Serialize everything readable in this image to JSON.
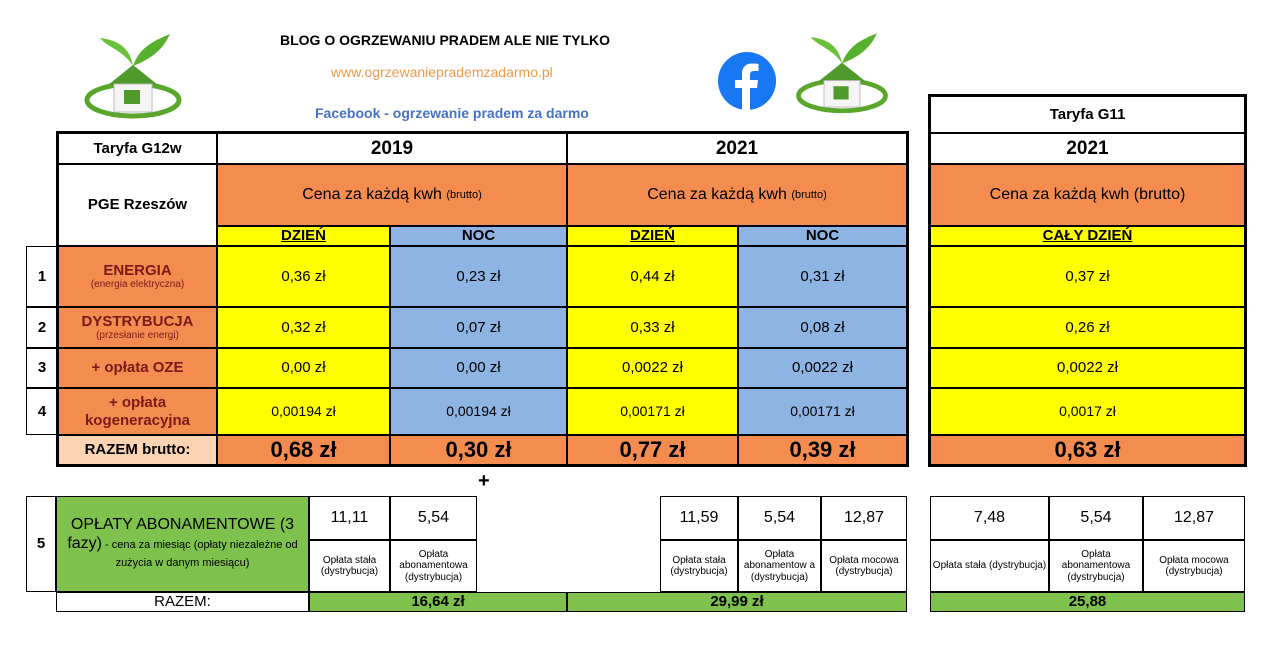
{
  "header": {
    "blog_title": "BLOG O OGRZEWANIU PRADEM ALE NIE TYLKO",
    "website": "www.ogrzewanieprademzadarmo.pl",
    "facebook_link": "Facebook - ogrzewanie pradem za darmo"
  },
  "g12w": {
    "tariff": "Taryfa G12w",
    "operator": "PGE Rzeszów",
    "years": [
      "2019",
      "2021"
    ],
    "price_header_main": "Cena za każdą kwh",
    "price_header_suffix": "(brutto)",
    "day": "DZIEŃ",
    "night": "NOC"
  },
  "g11": {
    "tariff": "Taryfa G11",
    "year": "2021",
    "price_header": "Cena za każdą kwh (brutto)",
    "all_day": "CAŁY DZIEŃ"
  },
  "rows": [
    {
      "num": "1",
      "label": "ENERGIA",
      "sub": "(energia elektryczna)",
      "v2019_day": "0,36 zł",
      "v2019_night": "0,23 zł",
      "v2021_day": "0,44 zł",
      "v2021_night": "0,31 zł",
      "g11": "0,37 zł"
    },
    {
      "num": "2",
      "label": "DYSTRYBUCJA",
      "sub": "(przesłanie energi)",
      "v2019_day": "0,32 zł",
      "v2019_night": "0,07 zł",
      "v2021_day": "0,33 zł",
      "v2021_night": "0,08 zł",
      "g11": "0,26 zł"
    },
    {
      "num": "3",
      "label": "+ opłata OZE",
      "sub": "",
      "v2019_day": "0,00 zł",
      "v2019_night": "0,00 zł",
      "v2021_day": "0,0022 zł",
      "v2021_night": "0,0022 zł",
      "g11": "0,0022 zł"
    },
    {
      "num": "4",
      "label": "+ opłata kogeneracyjna",
      "sub": "",
      "v2019_day": "0,00194 zł",
      "v2019_night": "0,00194 zł",
      "v2021_day": "0,00171 zł",
      "v2021_night": "0,00171 zł",
      "g11": "0,0017 zł"
    }
  ],
  "totals": {
    "label": "RAZEM brutto:",
    "v2019_day": "0,68 zł",
    "v2019_night": "0,30 zł",
    "v2021_day": "0,77 zł",
    "v2021_night": "0,39 zł",
    "g11": "0,63 zł"
  },
  "plus_sign": "+",
  "fees": {
    "num": "5",
    "label_main": "OPŁATY ABONAMENTOWE (3 fazy)",
    "label_sub": " - cena za miesiąc    (opłaty niezależne od zużycia w danym miesiącu)",
    "y2019": {
      "stala": "11,11",
      "abon": "5,54"
    },
    "y2021": {
      "stala": "11,59",
      "abon": "5,54",
      "mocowa": "12,87"
    },
    "g11": {
      "stala": "7,48",
      "abon": "5,54",
      "mocowa": "12,87"
    },
    "lbl_stala": "Opłata stała (dystrybucja)",
    "lbl_abon_2019": "Opłata abonamentowa (dystrybucja)",
    "lbl_abon_2021": "Opłata abonamentow a (dystrybucja)",
    "lbl_abon_g11": "Opłata abonamentowa (dystrybucja)",
    "lbl_mocowa": "Opłata mocowa (dystrybucja)",
    "sum_label": "RAZEM:",
    "sum_2019": "16,64 zł",
    "sum_2021": "29,99 zł",
    "sum_g11": "25,88"
  },
  "colors": {
    "orange": "#f48c4f",
    "yellow": "#ffff00",
    "blue": "#8eb4e3",
    "green": "#7ec24d",
    "facebook": "#1877f2"
  }
}
